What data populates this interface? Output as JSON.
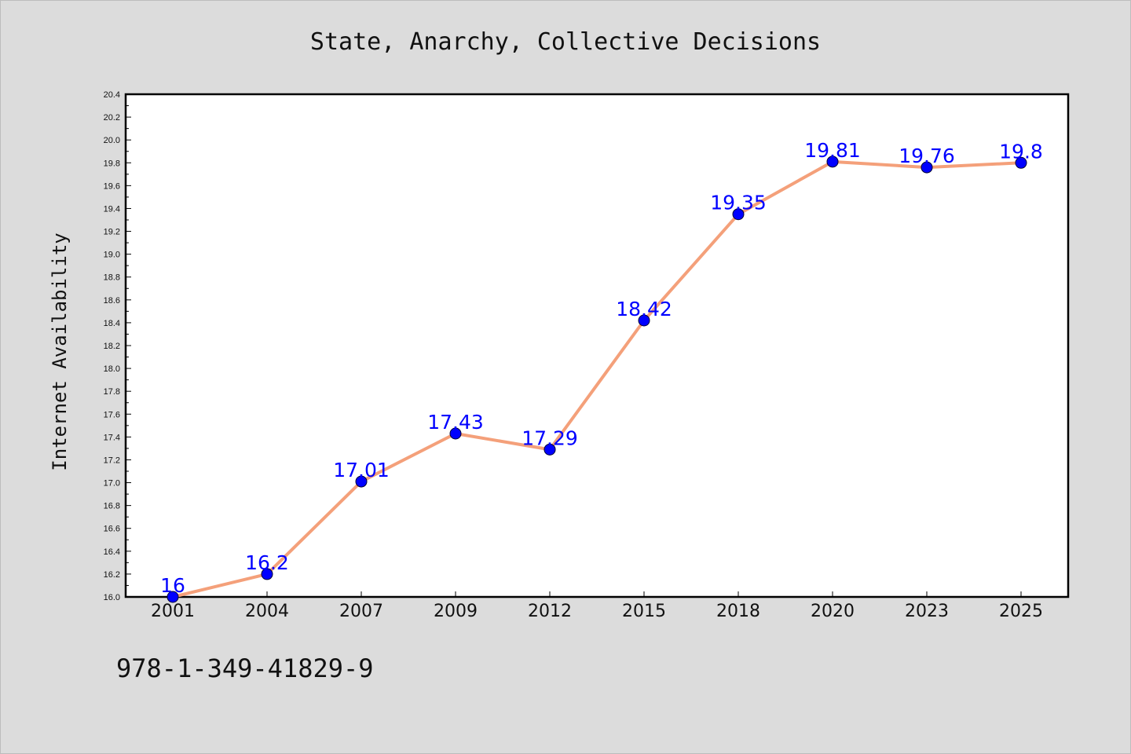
{
  "chart_data": {
    "type": "line",
    "title": "State, Anarchy, Collective Decisions",
    "xlabel": "",
    "ylabel": "Internet Availability",
    "categories": [
      "2001",
      "2004",
      "2007",
      "2009",
      "2012",
      "2015",
      "2018",
      "2020",
      "2023",
      "2025"
    ],
    "values": [
      16,
      16.2,
      17.01,
      17.43,
      17.29,
      18.42,
      19.35,
      19.81,
      19.76,
      19.8
    ],
    "data_labels": [
      "16",
      "16.2",
      "17.01",
      "17.43",
      "17.29",
      "18.42",
      "19.35",
      "19.81",
      "19.76",
      "19.8"
    ],
    "ylim": [
      16.0,
      20.4
    ],
    "yticks": [
      "16.0",
      "16.2",
      "16.4",
      "16.6",
      "16.8",
      "17.0",
      "17.2",
      "17.4",
      "17.6",
      "17.8",
      "18.0",
      "18.2",
      "18.4",
      "18.6",
      "18.8",
      "19.0",
      "19.2",
      "19.4",
      "19.6",
      "19.8",
      "20.0",
      "20.2",
      "20.4"
    ],
    "grid": false,
    "legend": "none",
    "line_color": "#f4a07a",
    "marker_color": "#0000ff",
    "label_color": "#0000ff",
    "background_color": "#dcdcdc",
    "plot_background_color": "#ffffff"
  },
  "footer": {
    "isbn": "978-1-349-41829-9"
  }
}
